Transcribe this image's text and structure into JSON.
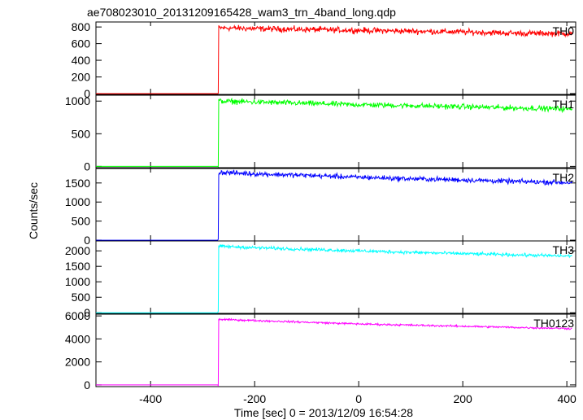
{
  "chart_data": {
    "type": "line",
    "title": "ae708023010_20131209165428_wam3_trn_4band_long.qdp",
    "xlabel": "Time [sec] 0 = 2013/12/09 16:54:28",
    "ylabel": "Counts/sec",
    "xlim": [
      -505,
      417
    ],
    "x_ticks": [
      -400,
      -200,
      0,
      200,
      400
    ],
    "trigger_time": -270,
    "noise_seed": 12345,
    "panels": [
      {
        "name": "TH0",
        "color": "#ff0000",
        "ylim": [
          -10,
          860
        ],
        "y_ticks": [
          0,
          200,
          400,
          600,
          800
        ],
        "pre_level": 0,
        "onset_peak": 790,
        "end_level": 720,
        "noise": 30,
        "points": [
          [
            -505,
            0
          ],
          [
            -270,
            0
          ],
          [
            -269,
            790
          ],
          [
            -200,
            780
          ],
          [
            -100,
            770
          ],
          [
            0,
            760
          ],
          [
            100,
            750
          ],
          [
            200,
            740
          ],
          [
            300,
            725
          ],
          [
            410,
            720
          ]
        ]
      },
      {
        "name": "TH1",
        "color": "#00ff00",
        "ylim": [
          -20,
          1090
        ],
        "y_ticks": [
          0,
          500,
          1000
        ],
        "pre_level": 0,
        "onset_peak": 1000,
        "end_level": 880,
        "noise": 35,
        "points": [
          [
            -505,
            0
          ],
          [
            -270,
            0
          ],
          [
            -269,
            1000
          ],
          [
            -200,
            985
          ],
          [
            -100,
            965
          ],
          [
            0,
            945
          ],
          [
            100,
            930
          ],
          [
            200,
            915
          ],
          [
            300,
            895
          ],
          [
            410,
            880
          ]
        ]
      },
      {
        "name": "TH2",
        "color": "#0000ff",
        "ylim": [
          -20,
          1880
        ],
        "y_ticks": [
          0,
          500,
          1000,
          1500
        ],
        "pre_level": 0,
        "onset_peak": 1780,
        "end_level": 1510,
        "noise": 55,
        "points": [
          [
            -505,
            0
          ],
          [
            -270,
            0
          ],
          [
            -269,
            1780
          ],
          [
            -200,
            1740
          ],
          [
            -100,
            1700
          ],
          [
            0,
            1650
          ],
          [
            100,
            1610
          ],
          [
            200,
            1580
          ],
          [
            300,
            1540
          ],
          [
            410,
            1510
          ]
        ]
      },
      {
        "name": "TH3",
        "color": "#00ffff",
        "ylim": [
          -20,
          2320
        ],
        "y_ticks": [
          0,
          500,
          1000,
          1500,
          2000
        ],
        "pre_level": 0,
        "onset_peak": 2150,
        "end_level": 1830,
        "noise": 45,
        "points": [
          [
            -505,
            0
          ],
          [
            -270,
            0
          ],
          [
            -269,
            2150
          ],
          [
            -200,
            2100
          ],
          [
            -100,
            2050
          ],
          [
            0,
            2000
          ],
          [
            100,
            1950
          ],
          [
            200,
            1910
          ],
          [
            300,
            1870
          ],
          [
            410,
            1830
          ]
        ]
      },
      {
        "name": "TH0123",
        "color": "#ff00ff",
        "ylim": [
          -150,
          6150
        ],
        "y_ticks": [
          0,
          2000,
          4000,
          6000
        ],
        "pre_level": 0,
        "onset_peak": 5700,
        "end_level": 4900,
        "noise": 70,
        "points": [
          [
            -505,
            0
          ],
          [
            -270,
            0
          ],
          [
            -269,
            5700
          ],
          [
            -200,
            5600
          ],
          [
            -100,
            5450
          ],
          [
            0,
            5300
          ],
          [
            100,
            5200
          ],
          [
            200,
            5100
          ],
          [
            300,
            5000
          ],
          [
            410,
            4900
          ]
        ]
      }
    ]
  }
}
